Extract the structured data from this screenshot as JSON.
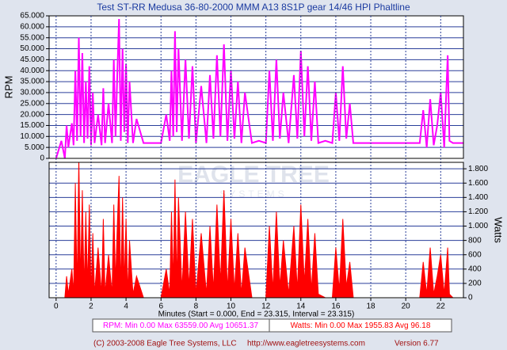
{
  "title": "Test ST-RR Medusa 36-80-2000 MMM A13 8S1P gear 14/46 HPI Phaltline",
  "watermark": [
    "EAGLE TREE",
    "SYSTEMS"
  ],
  "stats": [
    "RPM:  Min 0.00   Max 63559.00   Avg 10651.37",
    "Watts:  Min 0.00   Max 1955.83   Avg 96.18"
  ],
  "footer": [
    "(C) 2003-2008 Eagle Tree Systems, LLC",
    "http://www.eagletreesystems.com",
    "Version 6.77"
  ],
  "chart_data": [
    {
      "type": "line",
      "ylabel": "RPM",
      "color": "#ff00ff",
      "x": [
        0,
        0.3,
        0.5,
        0.6,
        0.7,
        0.9,
        1.0,
        1.1,
        1.2,
        1.3,
        1.4,
        1.5,
        1.6,
        1.7,
        1.8,
        1.9,
        2.0,
        2.1,
        2.2,
        2.4,
        2.6,
        2.7,
        2.8,
        3.0,
        3.2,
        3.3,
        3.4,
        3.5,
        3.6,
        3.7,
        3.8,
        3.9,
        4.0,
        4.1,
        4.2,
        4.4,
        4.6,
        5.0,
        5.5,
        6.0,
        6.3,
        6.5,
        6.6,
        6.7,
        6.8,
        6.9,
        7.0,
        7.2,
        7.4,
        7.6,
        7.8,
        8.0,
        8.3,
        8.6,
        8.8,
        9.0,
        9.2,
        9.4,
        9.6,
        9.8,
        10.0,
        10.2,
        10.4,
        10.6,
        10.8,
        11.2,
        11.6,
        12.0,
        12.2,
        12.4,
        12.6,
        12.8,
        13.0,
        13.3,
        13.6,
        13.8,
        14.0,
        14.2,
        14.4,
        14.6,
        14.8,
        15.0,
        15.4,
        15.8,
        16.0,
        16.2,
        16.4,
        16.6,
        16.8,
        17.0,
        18.0,
        19.0,
        20.0,
        20.5,
        20.8,
        21.0,
        21.2,
        21.4,
        21.6,
        21.8,
        22.0,
        22.2,
        22.4,
        22.5,
        22.7,
        23.3
      ],
      "values": [
        0,
        8000,
        0,
        15000,
        5000,
        16000,
        6000,
        40000,
        8000,
        55000,
        10000,
        48000,
        7000,
        35000,
        9000,
        42000,
        6000,
        30000,
        7000,
        20000,
        6000,
        32000,
        7000,
        25000,
        7000,
        45000,
        10000,
        38000,
        63559,
        8000,
        50000,
        12000,
        43000,
        7000,
        35000,
        7000,
        18000,
        7000,
        7000,
        7000,
        20000,
        8000,
        40000,
        10000,
        58000,
        12000,
        50000,
        8000,
        45000,
        9000,
        42000,
        7000,
        33000,
        7000,
        38000,
        9000,
        47000,
        10000,
        52000,
        8000,
        40000,
        9000,
        35000,
        7000,
        30000,
        7000,
        8000,
        7000,
        40000,
        8000,
        45000,
        9000,
        30000,
        7000,
        38000,
        9000,
        49000,
        10000,
        42000,
        8000,
        35000,
        7000,
        8000,
        7000,
        30000,
        8000,
        42000,
        9000,
        25000,
        7000,
        7000,
        7000,
        7000,
        7000,
        7000,
        22000,
        5000,
        27000,
        6000,
        15000,
        30000,
        5000,
        47000,
        8000,
        7000,
        7000
      ],
      "xlim": [
        -0.4,
        23.3
      ],
      "ylim": [
        0,
        65000
      ],
      "yticks": [
        0,
        {
          "value": 5000,
          "label": "5.000"
        },
        {
          "value": 10000,
          "label": "10.000"
        },
        {
          "value": 15000,
          "label": "15.000"
        },
        {
          "value": 20000,
          "label": "20.000"
        },
        {
          "value": 25000,
          "label": "25.000"
        },
        {
          "value": 30000,
          "label": "30.000"
        },
        {
          "value": 35000,
          "label": "35.000"
        },
        {
          "value": 40000,
          "label": "40.000"
        },
        {
          "value": 45000,
          "label": "45.000"
        },
        {
          "value": 50000,
          "label": "50.000"
        },
        {
          "value": 55000,
          "label": "55.000"
        },
        {
          "value": 60000,
          "label": "60.000"
        },
        {
          "value": 65000,
          "label": "65.000"
        }
      ],
      "grid": true
    },
    {
      "type": "area",
      "ylabel": "Watts",
      "color": "#ff0000",
      "x": [
        0,
        0.3,
        0.5,
        0.6,
        0.7,
        0.9,
        1.0,
        1.1,
        1.2,
        1.3,
        1.4,
        1.5,
        1.6,
        1.7,
        1.8,
        1.9,
        2.0,
        2.1,
        2.2,
        2.4,
        2.6,
        2.7,
        2.8,
        3.0,
        3.2,
        3.3,
        3.4,
        3.5,
        3.6,
        3.7,
        3.8,
        3.9,
        4.0,
        4.1,
        4.2,
        4.4,
        4.6,
        5.0,
        5.5,
        6.0,
        6.3,
        6.5,
        6.6,
        6.7,
        6.8,
        6.9,
        7.0,
        7.2,
        7.4,
        7.6,
        7.8,
        8.0,
        8.3,
        8.6,
        8.8,
        9.0,
        9.2,
        9.4,
        9.6,
        9.8,
        10.0,
        10.2,
        10.4,
        10.6,
        10.8,
        11.2,
        11.6,
        12.0,
        12.2,
        12.4,
        12.6,
        12.8,
        13.0,
        13.3,
        13.6,
        13.8,
        14.0,
        14.2,
        14.4,
        14.6,
        14.8,
        15.0,
        15.4,
        15.8,
        16.0,
        16.2,
        16.4,
        16.6,
        16.8,
        17.0,
        18.0,
        19.0,
        20.0,
        20.5,
        20.8,
        21.0,
        21.2,
        21.4,
        21.6,
        21.8,
        22.0,
        22.2,
        22.4,
        22.5,
        22.7,
        23.3
      ],
      "values": [
        0,
        0,
        0,
        300,
        50,
        400,
        50,
        1600,
        100,
        1955.83,
        200,
        1500,
        100,
        1200,
        150,
        1300,
        50,
        900,
        50,
        700,
        50,
        1100,
        50,
        600,
        50,
        1300,
        200,
        1000,
        1700,
        100,
        1400,
        200,
        1100,
        50,
        800,
        50,
        300,
        0,
        0,
        0,
        400,
        50,
        1200,
        200,
        1650,
        200,
        1400,
        100,
        1200,
        150,
        1100,
        50,
        900,
        50,
        1000,
        100,
        1300,
        200,
        1500,
        100,
        1100,
        100,
        900,
        50,
        700,
        0,
        0,
        0,
        1000,
        100,
        1200,
        150,
        800,
        50,
        1000,
        100,
        1300,
        200,
        1100,
        100,
        900,
        50,
        0,
        0,
        700,
        100,
        1100,
        150,
        500,
        0,
        0,
        0,
        0,
        0,
        0,
        500,
        50,
        700,
        50,
        300,
        600,
        50,
        700,
        50,
        0,
        0
      ],
      "xlim": [
        -0.4,
        23.3
      ],
      "ylim": [
        0,
        1890
      ],
      "yticks": [
        0,
        200,
        400,
        600,
        800,
        {
          "value": 1000,
          "label": "1.000"
        },
        {
          "value": 1200,
          "label": "1.200"
        },
        {
          "value": 1400,
          "label": "1.400"
        },
        {
          "value": 1600,
          "label": "1.600"
        },
        {
          "value": 1800,
          "label": "1.800"
        }
      ],
      "xticks": [
        0,
        2,
        4,
        6,
        8,
        10,
        12,
        14,
        16,
        18,
        20,
        22
      ],
      "xlabel": "Minutes (Start = 0.000, End = 23.315, Interval = 23.315)",
      "grid": true
    }
  ]
}
